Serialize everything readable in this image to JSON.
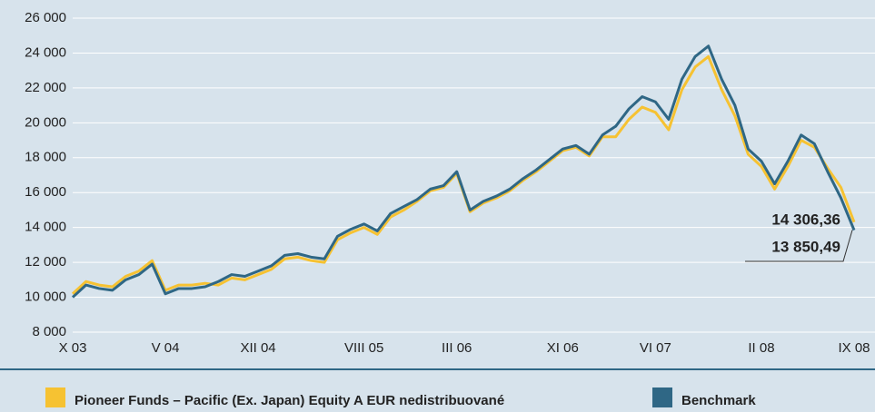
{
  "chart_data": {
    "type": "line",
    "categories": [
      "X 03",
      null,
      null,
      null,
      null,
      null,
      null,
      "V 04",
      null,
      null,
      null,
      null,
      null,
      null,
      "XII 04",
      null,
      null,
      null,
      null,
      null,
      null,
      null,
      "VIII 05",
      null,
      null,
      null,
      null,
      null,
      null,
      "III 06",
      null,
      null,
      null,
      null,
      null,
      null,
      null,
      "XI 06",
      null,
      null,
      null,
      null,
      null,
      null,
      "VI 07",
      null,
      null,
      null,
      null,
      null,
      null,
      null,
      "II 08",
      null,
      null,
      null,
      null,
      null,
      null,
      "IX 08"
    ],
    "series": [
      {
        "name": "Pioneer Funds – Pacific (Ex. Japan) Equity  A EUR nedistribuované",
        "color": "#f6c232",
        "values": [
          10200,
          10900,
          10700,
          10600,
          11200,
          11500,
          12100,
          10400,
          10700,
          10700,
          10800,
          10700,
          11100,
          11000,
          11300,
          11600,
          12200,
          12300,
          12100,
          12000,
          13300,
          13700,
          14000,
          13600,
          14600,
          15000,
          15500,
          16100,
          16300,
          17100,
          14900,
          15400,
          15700,
          16100,
          16700,
          17200,
          17800,
          18400,
          18600,
          18100,
          19200,
          19200,
          20200,
          20900,
          20600,
          19600,
          21900,
          23200,
          23800,
          21900,
          20400,
          18200,
          17500,
          16200,
          17500,
          19000,
          18600,
          17400,
          16300,
          14306.36
        ],
        "value_labels": [
          null,
          null,
          null,
          null,
          null,
          null,
          null,
          null,
          null,
          null,
          null,
          null,
          null,
          null,
          null,
          null,
          null,
          null,
          null,
          null,
          null,
          null,
          null,
          null,
          null,
          null,
          null,
          null,
          null,
          null,
          null,
          null,
          null,
          null,
          null,
          null,
          null,
          null,
          null,
          null,
          null,
          null,
          null,
          null,
          null,
          null,
          null,
          null,
          null,
          null,
          null,
          null,
          null,
          null,
          null,
          null,
          null,
          null,
          null,
          "14 306,36"
        ]
      },
      {
        "name": "Benchmark",
        "color": "#2f6785",
        "values": [
          10000,
          10700,
          10500,
          10400,
          11000,
          11300,
          11900,
          10200,
          10500,
          10500,
          10600,
          10900,
          11300,
          11200,
          11500,
          11800,
          12400,
          12500,
          12300,
          12200,
          13500,
          13900,
          14200,
          13800,
          14800,
          15200,
          15600,
          16200,
          16400,
          17200,
          15000,
          15500,
          15800,
          16200,
          16800,
          17300,
          17900,
          18500,
          18700,
          18200,
          19300,
          19800,
          20800,
          21500,
          21200,
          20200,
          22500,
          23800,
          24400,
          22500,
          21000,
          18500,
          17800,
          16500,
          17800,
          19300,
          18800,
          17200,
          15700,
          13850.49
        ],
        "value_labels": [
          null,
          null,
          null,
          null,
          null,
          null,
          null,
          null,
          null,
          null,
          null,
          null,
          null,
          null,
          null,
          null,
          null,
          null,
          null,
          null,
          null,
          null,
          null,
          null,
          null,
          null,
          null,
          null,
          null,
          null,
          null,
          null,
          null,
          null,
          null,
          null,
          null,
          null,
          null,
          null,
          null,
          null,
          null,
          null,
          null,
          null,
          null,
          null,
          null,
          null,
          null,
          null,
          null,
          null,
          null,
          null,
          null,
          null,
          null,
          "13 850,49"
        ]
      }
    ],
    "ylim": [
      8000,
      26000
    ],
    "yticks": [
      {
        "value": 8000,
        "label": "8 000"
      },
      {
        "value": 10000,
        "label": "10 000"
      },
      {
        "value": 12000,
        "label": "12 000"
      },
      {
        "value": 14000,
        "label": "14 000"
      },
      {
        "value": 16000,
        "label": "16 000"
      },
      {
        "value": 18000,
        "label": "18 000"
      },
      {
        "value": 20000,
        "label": "20 000"
      },
      {
        "value": 22000,
        "label": "22 000"
      },
      {
        "value": 24000,
        "label": "24 000"
      },
      {
        "value": 26000,
        "label": "26 000"
      }
    ],
    "grid": true
  }
}
